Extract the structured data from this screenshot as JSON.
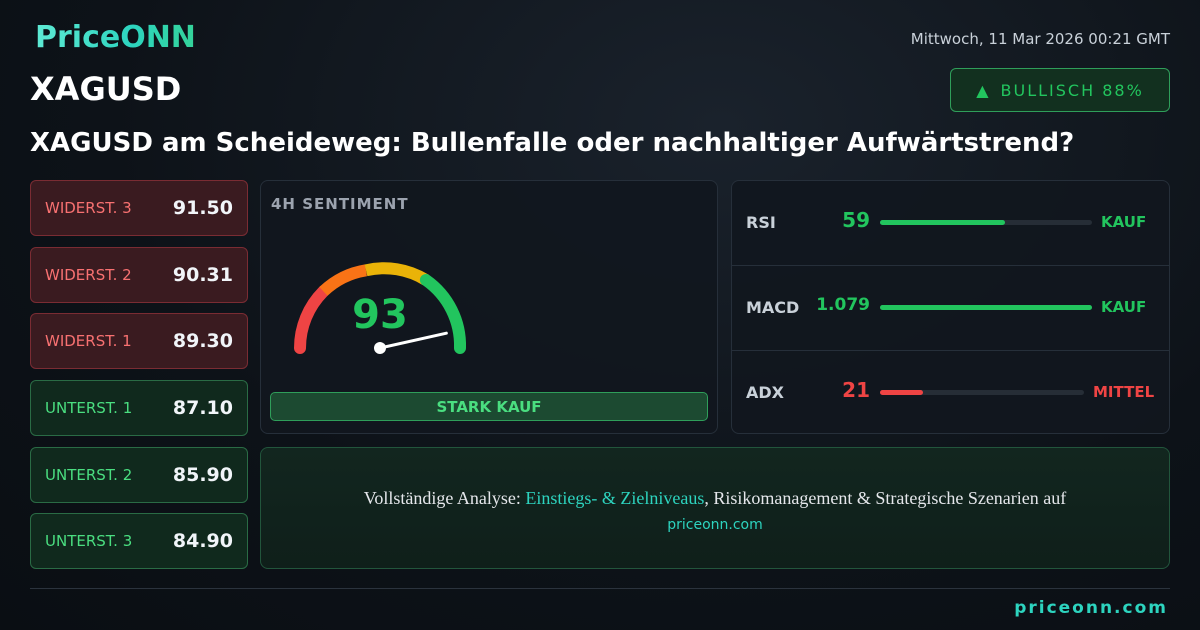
{
  "header": {
    "logo": "PriceONN",
    "symbol": "XAGUSD",
    "date": "Mittwoch, 11 Mar 2026 00:21 GMT",
    "badge": "BULLISCH 88%",
    "headline": "XAGUSD am Scheideweg: Bullenfalle oder nachhaltiger Aufwärtstrend?"
  },
  "levels": [
    {
      "label": "WIDERST. 3",
      "value": "91.50"
    },
    {
      "label": "WIDERST. 2",
      "value": "90.31"
    },
    {
      "label": "WIDERST. 1",
      "value": "89.30"
    },
    {
      "label": "UNTERST. 1",
      "value": "87.10"
    },
    {
      "label": "UNTERST. 2",
      "value": "85.90"
    },
    {
      "label": "UNTERST. 3",
      "value": "84.90"
    }
  ],
  "gauge": {
    "title": "4H SENTIMENT",
    "value": 93,
    "signal": "STARK KAUF"
  },
  "indicators": [
    {
      "name": "RSI",
      "value": 59,
      "signal": "KAUF"
    },
    {
      "name": "MACD",
      "value": 1.079,
      "signal": "KAUF"
    },
    {
      "name": "ADX",
      "value": 21,
      "signal": "MITTEL"
    }
  ],
  "cta": {
    "prefix": "Vollständige Analyse:",
    "highlight": "Einstiegs- & Zielniveaus",
    "suffix": ", Risikomanagement & Strategische Szenarien auf",
    "link": "priceonn.com"
  },
  "footer": "priceonn.com"
}
